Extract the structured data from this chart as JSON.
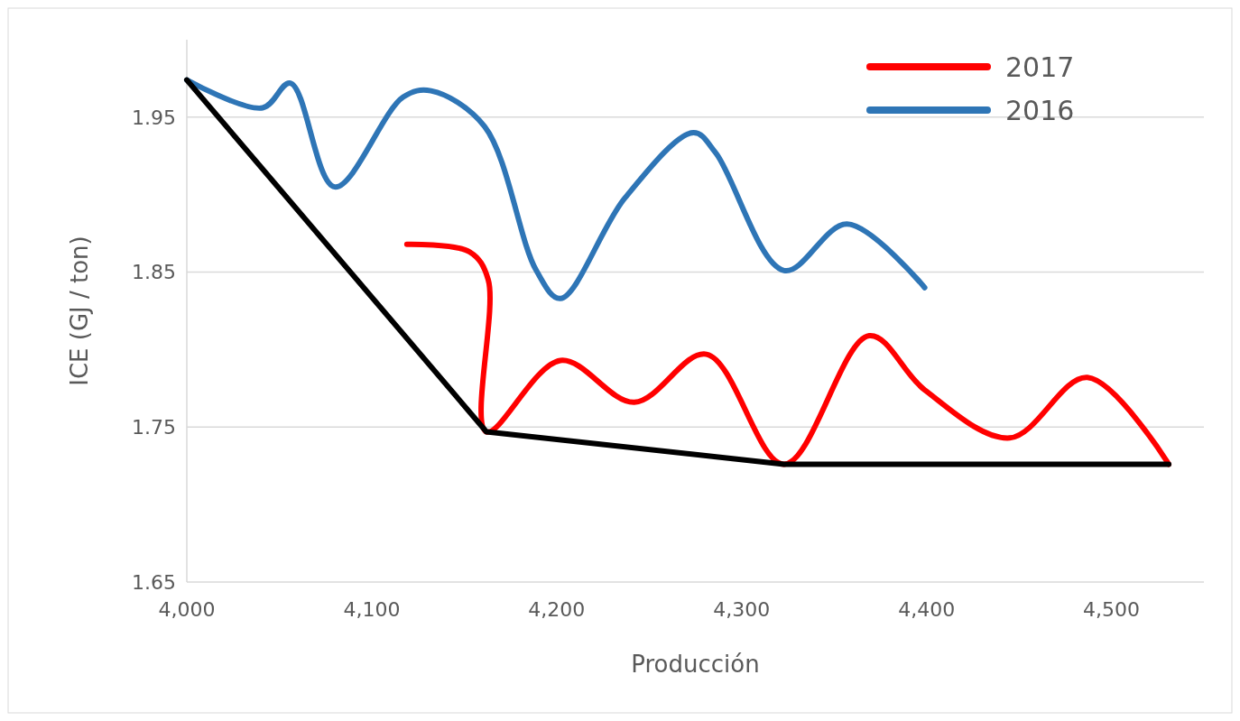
{
  "chart_data": {
    "type": "line",
    "xlabel": "Producción",
    "ylabel": "ICE (GJ / ton)",
    "xlim": [
      4000,
      4550
    ],
    "ylim": [
      1.65,
      2.0
    ],
    "xticks": [
      {
        "value": 4000,
        "label": "4,000"
      },
      {
        "value": 4100,
        "label": "4,100"
      },
      {
        "value": 4200,
        "label": "4,200"
      },
      {
        "value": 4300,
        "label": "4,300"
      },
      {
        "value": 4400,
        "label": "4,400"
      },
      {
        "value": 4500,
        "label": "4,500"
      }
    ],
    "yticks": [
      1.65,
      1.75,
      1.85,
      1.95
    ],
    "grid": "y",
    "legend": "top right",
    "line_style": "solid",
    "marker": "none",
    "series": [
      {
        "name": "2017",
        "color": "#ff0000",
        "x": [
          4119,
          4153,
          4163,
          4162,
          4202,
          4242,
          4281,
          4323,
          4369,
          4399,
          4445,
          4487,
          4531
        ],
        "values": [
          1.868,
          1.863,
          1.845,
          1.747,
          1.793,
          1.766,
          1.797,
          1.726,
          1.809,
          1.774,
          1.743,
          1.782,
          1.726
        ]
      },
      {
        "name": "2016",
        "color": "#2e75b6",
        "x": [
          4000,
          4041,
          4056,
          4080,
          4117,
          4132,
          4161,
          4189,
          4202,
          4237,
          4274,
          4286,
          4323,
          4357,
          4399
        ],
        "values": [
          1.974,
          1.956,
          1.972,
          1.905,
          1.963,
          1.967,
          1.944,
          1.851,
          1.833,
          1.898,
          1.94,
          1.927,
          1.851,
          1.881,
          1.84
        ]
      },
      {
        "color": "#000000",
        "x": [
          4000,
          4162,
          4323,
          4531
        ],
        "values": [
          1.974,
          1.747,
          1.726,
          1.726
        ]
      }
    ]
  }
}
